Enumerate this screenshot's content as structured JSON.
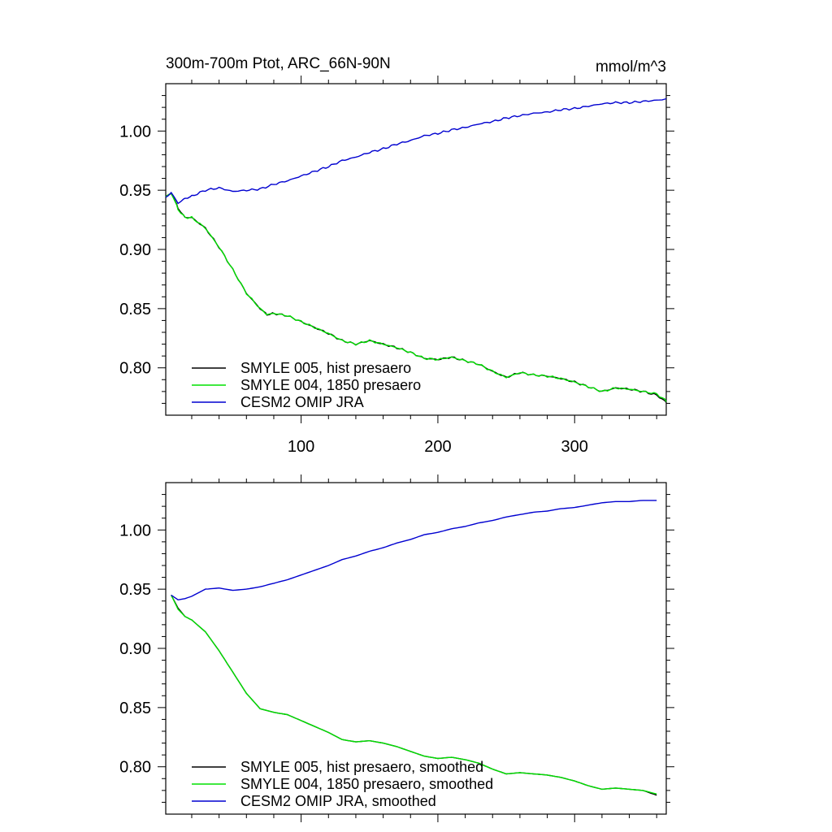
{
  "figure": {
    "title": "300m-700m Ptot, ARC_66N-90N",
    "units": "mmol/m^3"
  },
  "chart_data": [
    {
      "type": "line",
      "title": "300m-700m Ptot, ARC_66N-90N",
      "units_label": "mmol/m^3",
      "xlim": [
        1,
        367
      ],
      "ylim": [
        0.76,
        1.04
      ],
      "x_ticks": [
        100,
        200,
        300
      ],
      "x_tick_labels": [
        "100",
        "200",
        "300"
      ],
      "y_ticks": [
        0.8,
        0.85,
        0.9,
        0.95,
        1.0
      ],
      "y_tick_labels": [
        "0.80",
        "0.85",
        "0.90",
        "0.95",
        "1.00"
      ],
      "legend_position": "bottom-left",
      "series": [
        {
          "name": "SMYLE 005, hist presaero",
          "color": "#000000",
          "smoothed": false,
          "x": [
            1,
            5,
            10,
            15,
            20,
            30,
            40,
            50,
            60,
            70,
            75,
            80,
            90,
            100,
            110,
            120,
            130,
            140,
            150,
            160,
            170,
            180,
            190,
            200,
            210,
            220,
            230,
            240,
            250,
            260,
            270,
            280,
            290,
            300,
            310,
            320,
            330,
            340,
            350,
            360,
            367
          ],
          "y": [
            0.944,
            0.948,
            0.935,
            0.927,
            0.927,
            0.918,
            0.902,
            0.883,
            0.863,
            0.85,
            0.845,
            0.846,
            0.844,
            0.839,
            0.834,
            0.829,
            0.823,
            0.82,
            0.823,
            0.82,
            0.817,
            0.813,
            0.808,
            0.807,
            0.809,
            0.806,
            0.803,
            0.797,
            0.792,
            0.796,
            0.794,
            0.793,
            0.791,
            0.788,
            0.784,
            0.78,
            0.783,
            0.782,
            0.78,
            0.777,
            0.771
          ]
        },
        {
          "name": "SMYLE 004, 1850 presaero",
          "color": "#00e000",
          "smoothed": false,
          "x": [
            1,
            5,
            10,
            15,
            20,
            30,
            40,
            50,
            60,
            70,
            75,
            80,
            90,
            100,
            110,
            120,
            130,
            140,
            150,
            160,
            170,
            180,
            190,
            200,
            210,
            220,
            230,
            240,
            250,
            260,
            270,
            280,
            290,
            300,
            310,
            320,
            330,
            340,
            350,
            360,
            367
          ],
          "y": [
            0.944,
            0.948,
            0.934,
            0.927,
            0.927,
            0.918,
            0.902,
            0.883,
            0.863,
            0.85,
            0.845,
            0.846,
            0.844,
            0.839,
            0.834,
            0.829,
            0.823,
            0.82,
            0.823,
            0.82,
            0.817,
            0.813,
            0.808,
            0.807,
            0.809,
            0.806,
            0.803,
            0.797,
            0.792,
            0.796,
            0.794,
            0.793,
            0.791,
            0.788,
            0.784,
            0.78,
            0.783,
            0.782,
            0.78,
            0.778,
            0.772
          ]
        },
        {
          "name": "CESM2 OMIP JRA",
          "color": "#0000d0",
          "smoothed": false,
          "x": [
            1,
            5,
            10,
            15,
            20,
            30,
            40,
            50,
            60,
            70,
            80,
            90,
            100,
            110,
            120,
            130,
            140,
            150,
            160,
            170,
            180,
            190,
            200,
            210,
            220,
            230,
            240,
            250,
            260,
            270,
            280,
            290,
            300,
            310,
            320,
            330,
            340,
            350,
            360,
            367
          ],
          "y": [
            0.944,
            0.948,
            0.939,
            0.943,
            0.945,
            0.95,
            0.952,
            0.949,
            0.95,
            0.951,
            0.955,
            0.958,
            0.962,
            0.966,
            0.97,
            0.975,
            0.978,
            0.982,
            0.985,
            0.989,
            0.992,
            0.996,
            0.998,
            1.001,
            1.003,
            1.006,
            1.008,
            1.011,
            1.013,
            1.015,
            1.016,
            1.018,
            1.019,
            1.021,
            1.023,
            1.024,
            1.024,
            1.025,
            1.026,
            1.027
          ]
        }
      ]
    },
    {
      "type": "line",
      "title": "",
      "units_label": "",
      "xlim": [
        1,
        367
      ],
      "ylim": [
        0.76,
        1.04
      ],
      "x_ticks": [
        100,
        200,
        300
      ],
      "x_tick_labels": [],
      "y_ticks": [
        0.8,
        0.85,
        0.9,
        0.95,
        1.0
      ],
      "y_tick_labels": [
        "0.80",
        "0.85",
        "0.90",
        "0.95",
        "1.00"
      ],
      "legend_position": "bottom-left",
      "series": [
        {
          "name": "SMYLE 005, hist presaero, smoothed",
          "color": "#000000",
          "smoothed": true,
          "x": [
            5,
            10,
            15,
            20,
            30,
            40,
            50,
            60,
            70,
            80,
            90,
            100,
            110,
            120,
            130,
            140,
            150,
            160,
            170,
            180,
            190,
            200,
            210,
            220,
            230,
            240,
            250,
            260,
            270,
            280,
            290,
            300,
            310,
            320,
            330,
            340,
            350,
            360
          ],
          "y": [
            0.945,
            0.934,
            0.927,
            0.924,
            0.914,
            0.898,
            0.88,
            0.862,
            0.849,
            0.846,
            0.844,
            0.839,
            0.834,
            0.829,
            0.823,
            0.821,
            0.822,
            0.82,
            0.817,
            0.813,
            0.809,
            0.807,
            0.808,
            0.806,
            0.803,
            0.798,
            0.794,
            0.795,
            0.794,
            0.793,
            0.791,
            0.788,
            0.784,
            0.781,
            0.782,
            0.781,
            0.78,
            0.776
          ]
        },
        {
          "name": "SMYLE 004, 1850 presaero, smoothed",
          "color": "#00e000",
          "smoothed": true,
          "x": [
            5,
            10,
            15,
            20,
            30,
            40,
            50,
            60,
            70,
            80,
            90,
            100,
            110,
            120,
            130,
            140,
            150,
            160,
            170,
            180,
            190,
            200,
            210,
            220,
            230,
            240,
            250,
            260,
            270,
            280,
            290,
            300,
            310,
            320,
            330,
            340,
            350,
            360
          ],
          "y": [
            0.945,
            0.933,
            0.927,
            0.924,
            0.914,
            0.898,
            0.88,
            0.862,
            0.849,
            0.846,
            0.844,
            0.839,
            0.834,
            0.829,
            0.823,
            0.821,
            0.822,
            0.82,
            0.817,
            0.813,
            0.809,
            0.807,
            0.808,
            0.806,
            0.803,
            0.798,
            0.794,
            0.795,
            0.794,
            0.793,
            0.791,
            0.788,
            0.784,
            0.781,
            0.782,
            0.781,
            0.78,
            0.777
          ]
        },
        {
          "name": "CESM2 OMIP JRA, smoothed",
          "color": "#0000d0",
          "smoothed": true,
          "x": [
            5,
            10,
            15,
            20,
            30,
            40,
            50,
            60,
            70,
            80,
            90,
            100,
            110,
            120,
            130,
            140,
            150,
            160,
            170,
            180,
            190,
            200,
            210,
            220,
            230,
            240,
            250,
            260,
            270,
            280,
            290,
            300,
            310,
            320,
            330,
            340,
            350,
            360
          ],
          "y": [
            0.945,
            0.941,
            0.942,
            0.944,
            0.95,
            0.951,
            0.949,
            0.95,
            0.952,
            0.955,
            0.958,
            0.962,
            0.966,
            0.97,
            0.975,
            0.978,
            0.982,
            0.985,
            0.989,
            0.992,
            0.996,
            0.998,
            1.001,
            1.003,
            1.006,
            1.008,
            1.011,
            1.013,
            1.015,
            1.016,
            1.018,
            1.019,
            1.021,
            1.023,
            1.024,
            1.024,
            1.025,
            1.025
          ]
        }
      ]
    }
  ]
}
